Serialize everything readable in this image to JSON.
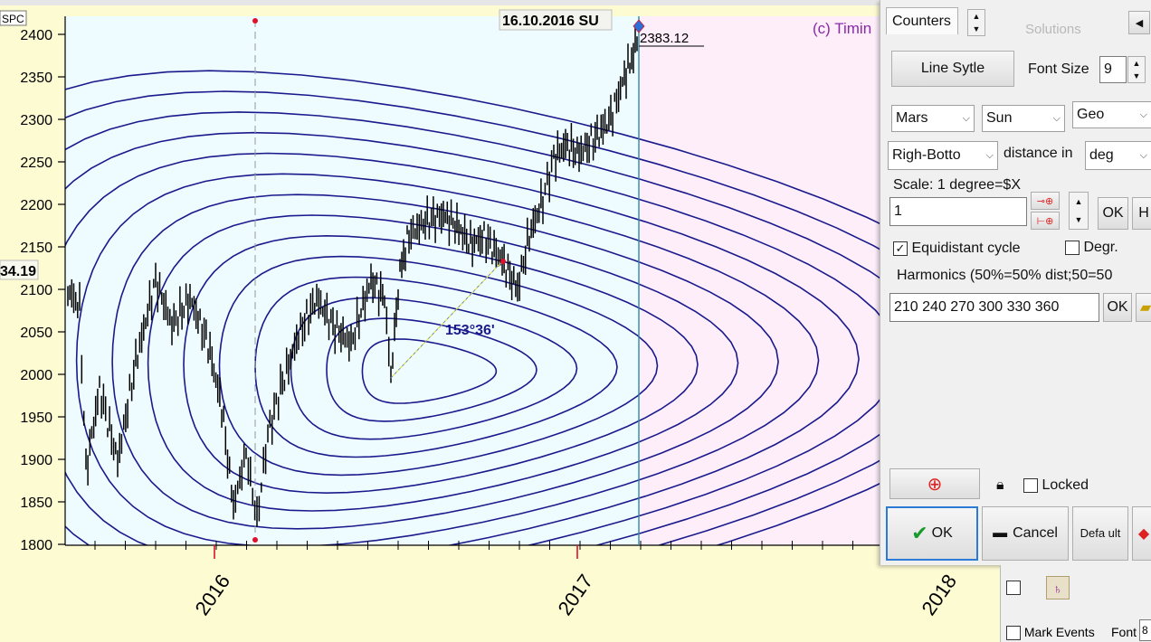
{
  "chart": {
    "symbol": "SPC",
    "date_label": "16.10.2016 SU",
    "price_label": "2383.12",
    "left_value": "34.19",
    "copyright": "(c) Timin",
    "angle_label": "153°36'",
    "y_ticks": [
      "2400",
      "2350",
      "2300",
      "2250",
      "2200",
      "2150",
      "2100",
      "2050",
      "2000",
      "1950",
      "1900",
      "1850",
      "1800"
    ],
    "x_years": [
      "2016",
      "2017",
      "2018"
    ],
    "colors": {
      "line": "#1a1a8c",
      "pink_bg": "#fdeefa",
      "blue_bg": "#eefcff",
      "yellow_bg": "#fdfbd2",
      "marker": "#e0102a"
    }
  },
  "dialog": {
    "tab_counters": "Counters",
    "ghost_tab": "Solutions",
    "line_style_button": "Line Sytle",
    "font_size_label": "Font Size",
    "font_size_value": "9",
    "planet1": "Mars",
    "planet2": "Sun",
    "coord_mode": "Geo",
    "position": "Righ-Botto",
    "distance_label": "distance in",
    "distance_unit": "deg",
    "scale_label": "Scale: 1 degree=$X",
    "scale_value": "1",
    "ok_small": "OK",
    "h_button": "H",
    "equidistant_label": "Equidistant cycle",
    "degr_label": "Degr.",
    "harmonics_label": "Harmonics (50%=50% dist;50=50",
    "harmonics_value": "210 240 270 300 330 360",
    "locked_label": "Locked",
    "ok_button": "OK",
    "cancel_button": "Cancel",
    "default_button": "Defa ult"
  },
  "bottom_panel": {
    "mark_events_label": "Mark Events",
    "font_label": "Font",
    "font_value": "8"
  }
}
